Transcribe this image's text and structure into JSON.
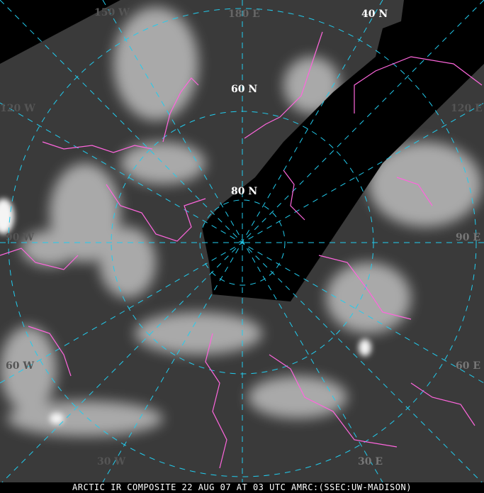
{
  "map": {
    "type": "polar stereographic satellite composite",
    "colors": {
      "coastline": "#ff66dd",
      "graticule": "#22ccee",
      "background": "#000000"
    },
    "latitude_labels": [
      "40 N",
      "60 N",
      "80 N"
    ],
    "longitude_labels": [
      "150 W",
      "180 E",
      "120 W",
      "120 E",
      "90 W",
      "90 E",
      "60 W",
      "60 E",
      "30 W",
      "30 E"
    ]
  },
  "caption": "ARCTIC IR COMPOSITE 22 AUG 07 AT 03 UTC AMRC:(SSEC:UW-MADISON)"
}
